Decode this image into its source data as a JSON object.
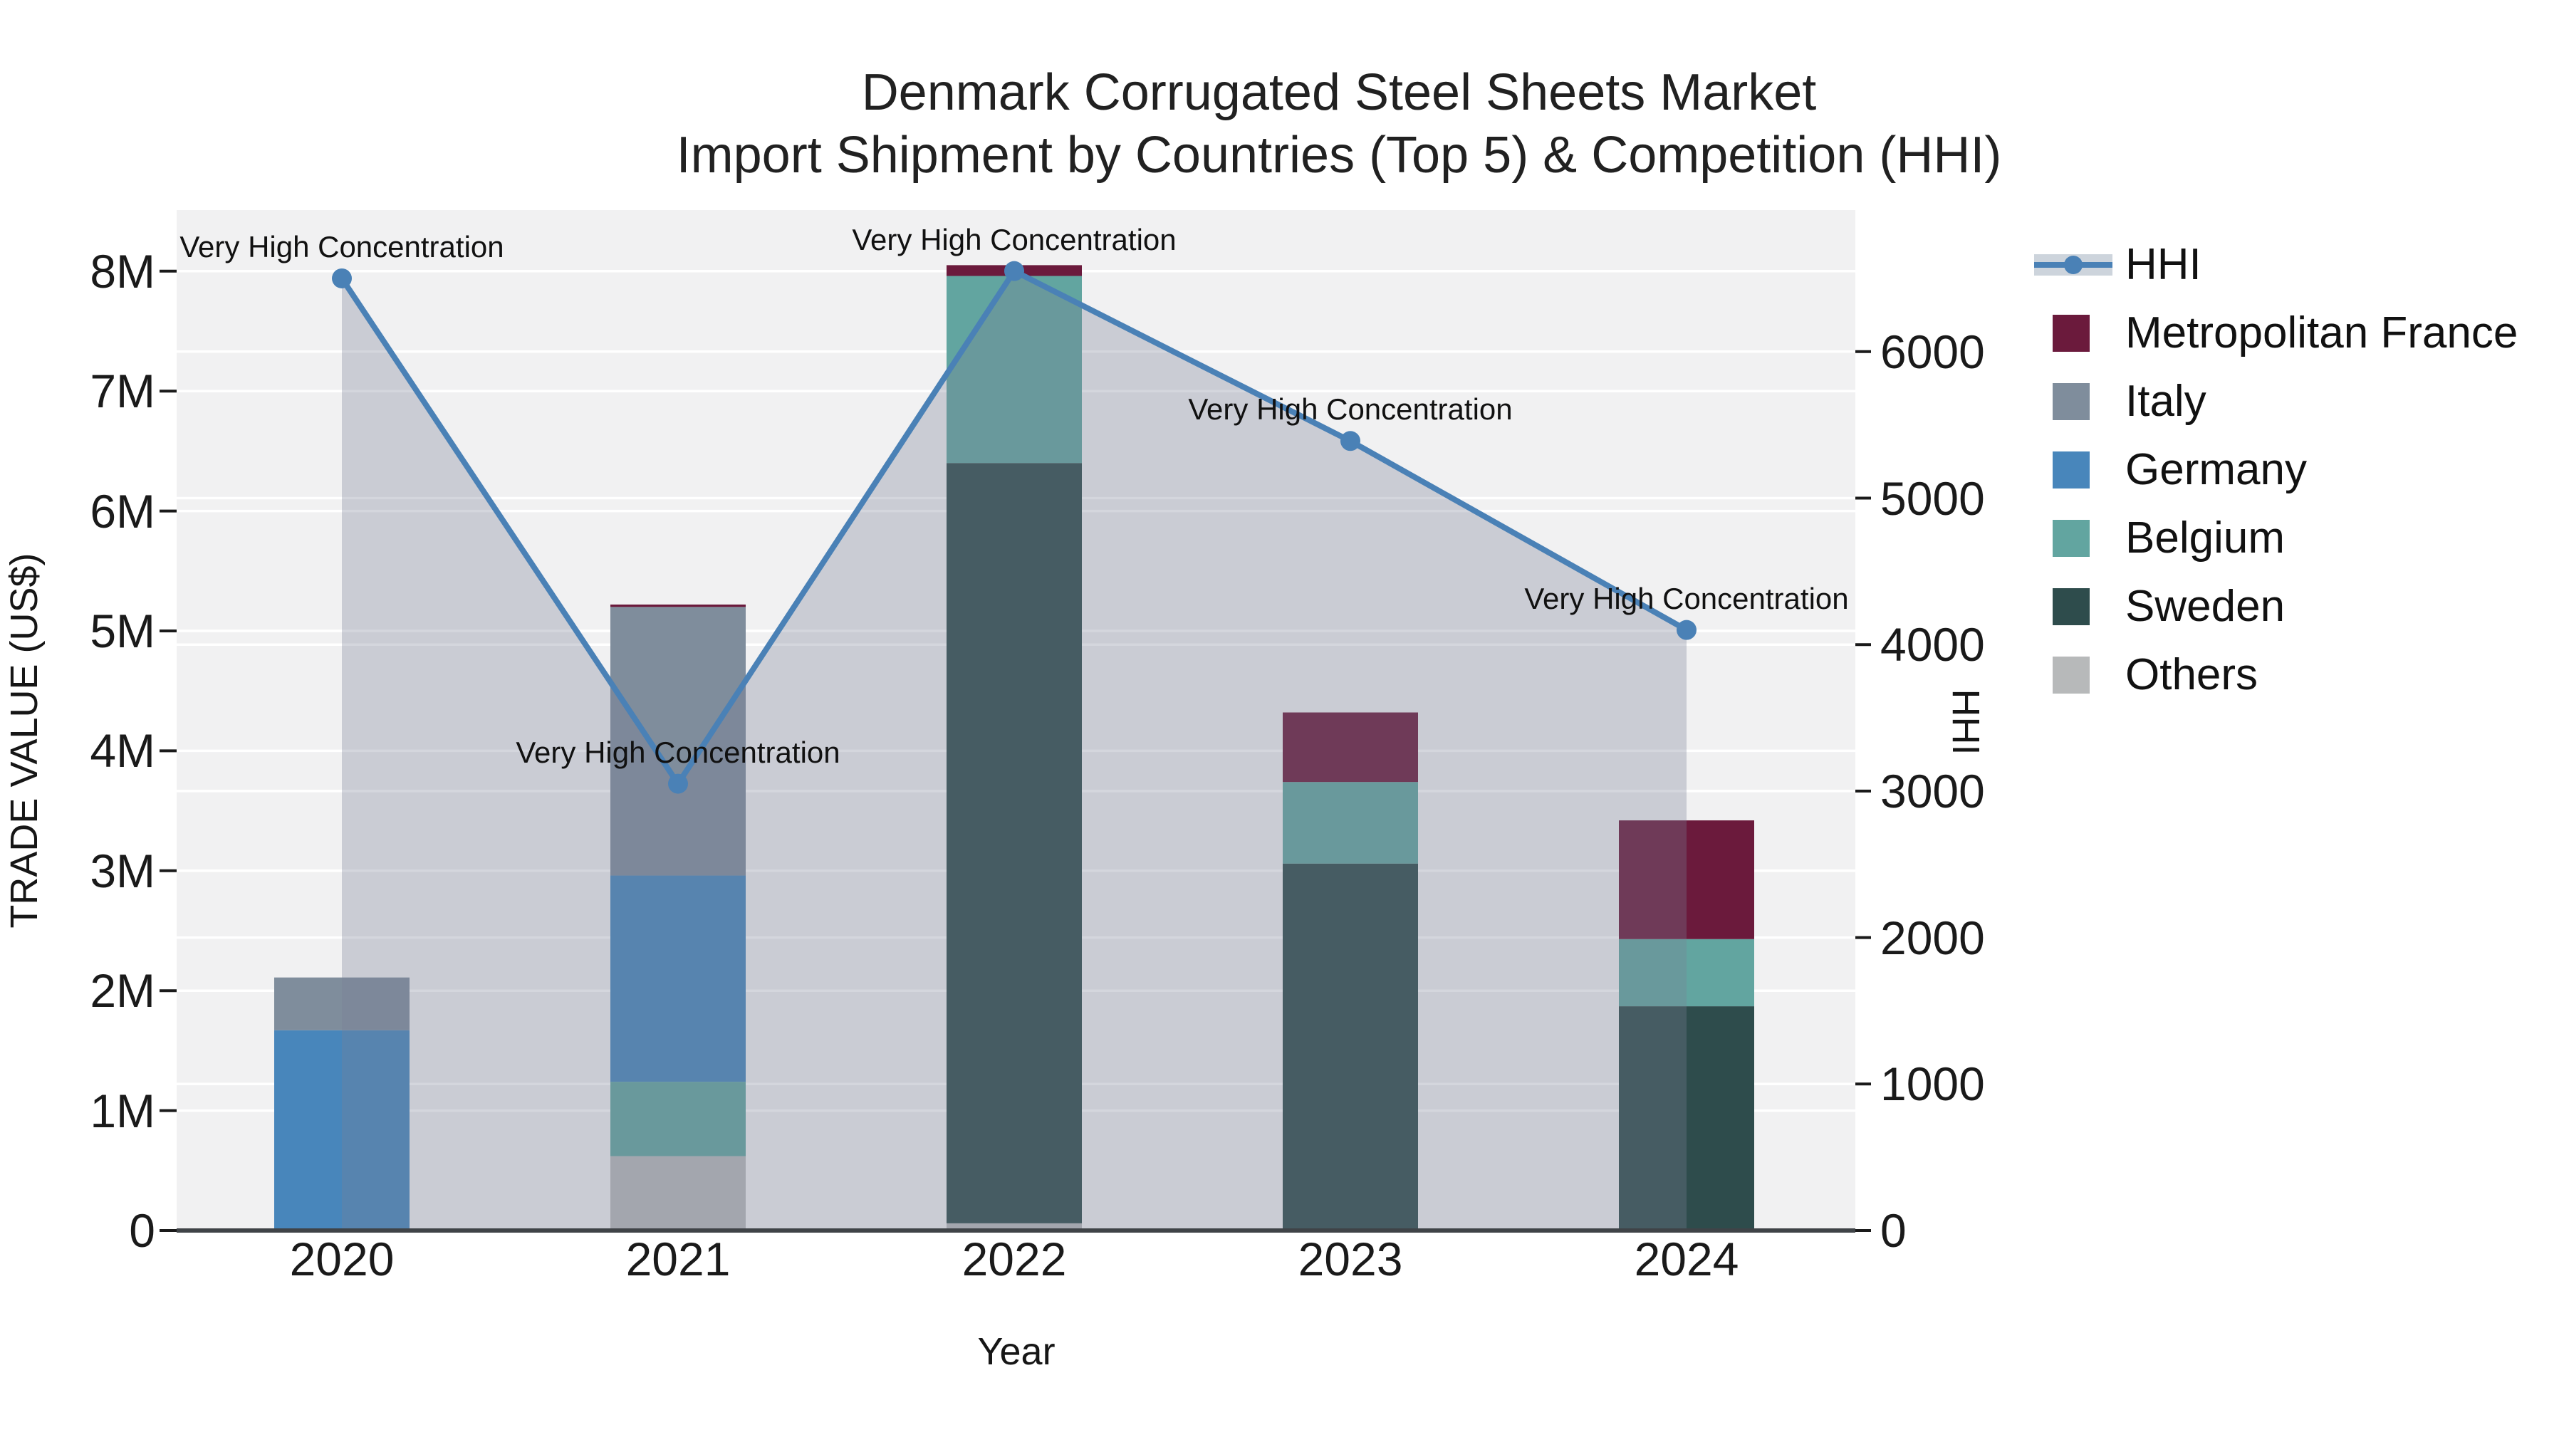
{
  "title": {
    "line1": "Denmark Corrugated Steel Sheets Market",
    "line2": "Import Shipment by Countries (Top 5) & Competition (HHI)"
  },
  "axis_titles": {
    "x": "Year",
    "y_left": "TRADE VALUE (US$)",
    "y_right": "HHI"
  },
  "chart_data": {
    "type": "bar",
    "subtype": "stacked-bar-with-line",
    "title": "Denmark Corrugated Steel Sheets Market — Import Shipment by Countries (Top 5) & Competition (HHI)",
    "categories": [
      "2020",
      "2021",
      "2022",
      "2023",
      "2024"
    ],
    "xlabel": "Year",
    "ylabel_left": "TRADE VALUE (US$)",
    "ylabel_right": "HHI",
    "y_left_ticks": [
      "0",
      "1M",
      "2M",
      "3M",
      "4M",
      "5M",
      "6M",
      "7M",
      "8M"
    ],
    "y_right_ticks": [
      "0",
      "1000",
      "2000",
      "3000",
      "4000",
      "5000",
      "6000"
    ],
    "ylim_left_millions": [
      0,
      8.5
    ],
    "ylim_right": [
      0,
      6965
    ],
    "grid": "on",
    "unit": "Million US$",
    "series": [
      {
        "name": "Others",
        "color": "#b7b9ba",
        "values": [
          0,
          0.62,
          0.06,
          0,
          0
        ]
      },
      {
        "name": "Sweden",
        "color": "#2e4c4c",
        "values": [
          0,
          0,
          6.34,
          3.06,
          1.87
        ]
      },
      {
        "name": "Belgium",
        "color": "#62a5a0",
        "values": [
          0,
          0.62,
          1.56,
          0.68,
          0.56
        ]
      },
      {
        "name": "Germany",
        "color": "#4886bb",
        "values": [
          1.67,
          1.72,
          0,
          0,
          0
        ]
      },
      {
        "name": "Italy",
        "color": "#7f8d9c",
        "values": [
          0.44,
          2.24,
          0,
          0,
          0
        ]
      },
      {
        "name": "Metropolitan France",
        "color": "#6b1a3c",
        "values": [
          0,
          0.02,
          0.09,
          0.58,
          0.99
        ]
      }
    ],
    "bar_totals_millions": [
      2.11,
      5.22,
      8.05,
      4.32,
      3.42
    ],
    "line_series": {
      "name": "HHI",
      "color": "#4a81b6",
      "area_fill": "rgba(120,128,148,0.32)",
      "marker": "circle",
      "values": [
        6500,
        3050,
        6550,
        5390,
        4100
      ]
    },
    "annotations": [
      {
        "year": "2020",
        "text": "Very High Concentration"
      },
      {
        "year": "2021",
        "text": "Very High Concentration"
      },
      {
        "year": "2022",
        "text": "Very High Concentration"
      },
      {
        "year": "2023",
        "text": "Very High Concentration"
      },
      {
        "year": "2024",
        "text": "Very High Concentration"
      }
    ],
    "legend_position": "right",
    "legend": [
      {
        "label": "HHI",
        "type": "line",
        "color": "#4a81b6",
        "band_color": "#cdd4dc"
      },
      {
        "label": "Metropolitan France",
        "type": "swatch",
        "color": "#6b1a3c"
      },
      {
        "label": "Italy",
        "type": "swatch",
        "color": "#7f8d9c"
      },
      {
        "label": "Germany",
        "type": "swatch",
        "color": "#4886bb"
      },
      {
        "label": "Belgium",
        "type": "swatch",
        "color": "#62a5a0"
      },
      {
        "label": "Sweden",
        "type": "swatch",
        "color": "#2e4c4c"
      },
      {
        "label": "Others",
        "type": "swatch",
        "color": "#b7b9ba"
      }
    ],
    "style": {
      "plot_bg": "#f1f1f2",
      "gridline_color": "#ffffff",
      "spine_color": "#3f4347",
      "tick_color": "#1a1a1a"
    }
  }
}
